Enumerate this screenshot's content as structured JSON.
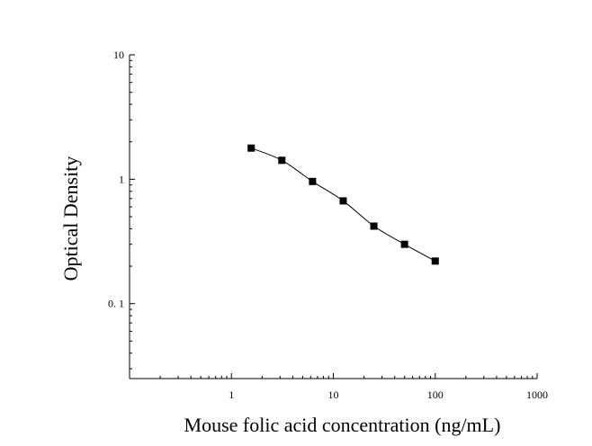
{
  "chart_data": {
    "type": "scatter",
    "title": "",
    "xlabel": "Mouse folic acid concentration (ng/mL)",
    "ylabel": "Optical Density",
    "x_scale": "log",
    "y_scale": "log",
    "xlim": [
      0.1,
      1000
    ],
    "ylim": [
      0.025,
      10
    ],
    "x_ticks": [
      {
        "value": 1,
        "label": "1"
      },
      {
        "value": 10,
        "label": "10"
      },
      {
        "value": 100,
        "label": "100"
      },
      {
        "value": 1000,
        "label": "1000"
      }
    ],
    "y_ticks": [
      {
        "value": 10,
        "label": "10"
      },
      {
        "value": 1,
        "label": "1"
      },
      {
        "value": 0.1,
        "label": "0. 1"
      }
    ],
    "grid": false,
    "series": [
      {
        "marker": "square",
        "color": "#000000",
        "fit_line": "smooth curve",
        "x": [
          1.5625,
          3.125,
          6.25,
          12.5,
          25,
          50,
          100
        ],
        "y": [
          1.78,
          1.42,
          0.96,
          0.67,
          0.42,
          0.3,
          0.22
        ]
      }
    ]
  }
}
